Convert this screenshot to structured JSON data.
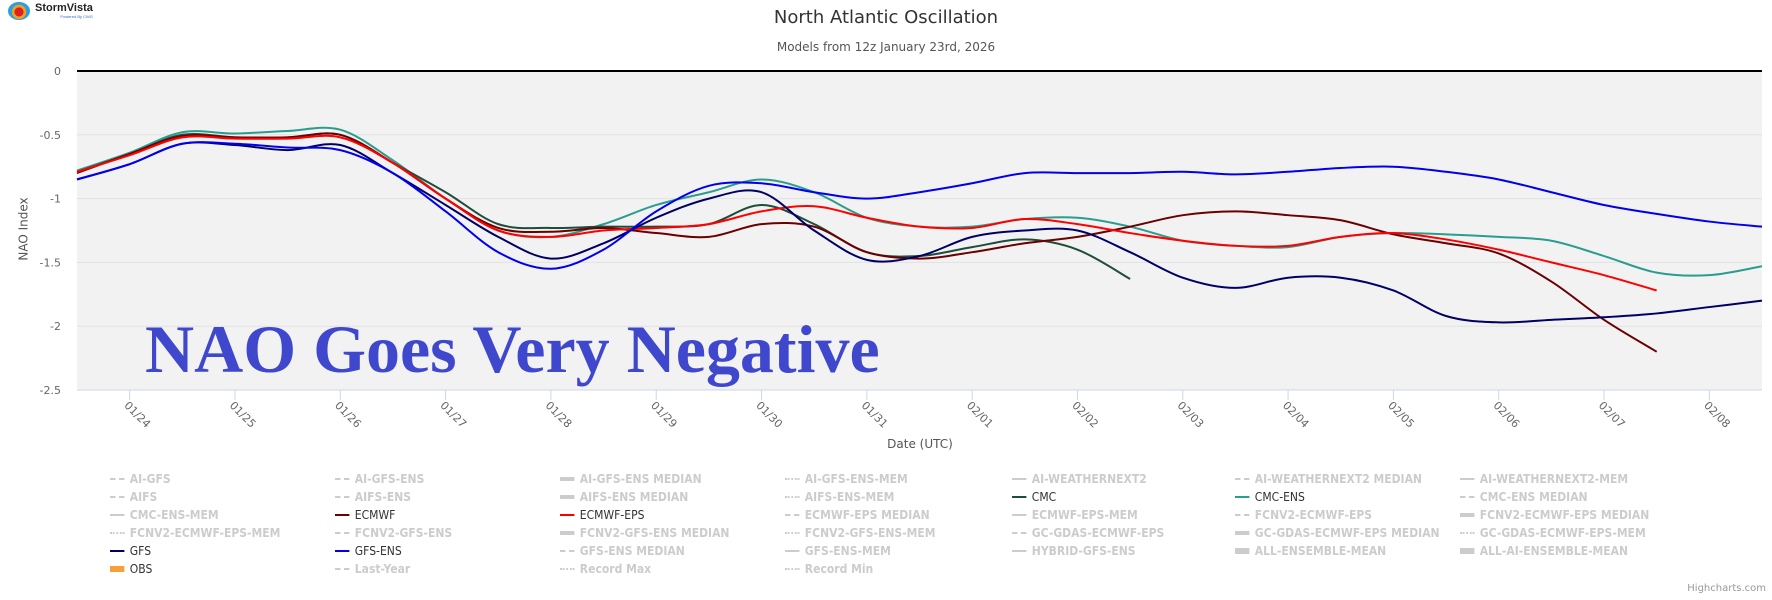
{
  "brand": {
    "name": "StormVista",
    "tagline": "Powered By CWG"
  },
  "credit": "Highcharts.com",
  "overlay_text": "NAO Goes Very Negative",
  "chart_data": {
    "type": "line",
    "title": "North Atlantic Oscillation",
    "subtitle": "Models from 12z January 23rd, 2026",
    "xlabel": "Date (UTC)",
    "ylabel": "NAO Index",
    "ylim": [
      -2.5,
      0
    ],
    "y_ticks": [
      "0",
      "-0.5",
      "-1",
      "-1.5",
      "-2",
      "-2.5"
    ],
    "y_tick_values": [
      0,
      -0.5,
      -1,
      -1.5,
      -2,
      -2.5
    ],
    "x_start": "01/23 12z",
    "x_step_hours": 12,
    "x_ticks": [
      "01/24",
      "01/25",
      "01/26",
      "01/27",
      "01/28",
      "01/29",
      "01/30",
      "01/31",
      "02/01",
      "02/02",
      "02/03",
      "02/04",
      "02/05",
      "02/06",
      "02/07",
      "02/08"
    ],
    "grid": true,
    "series": [
      {
        "name": "CMC-ENS",
        "color": "#2a9d8f",
        "values": [
          -0.78,
          -0.64,
          -0.48,
          -0.49,
          -0.47,
          -0.46,
          -0.7,
          -1.0,
          -1.25,
          -1.3,
          -1.2,
          -1.05,
          -0.95,
          -0.85,
          -0.95,
          -1.15,
          -1.22,
          -1.22,
          -1.16,
          -1.15,
          -1.22,
          -1.33,
          -1.37,
          -1.38,
          -1.3,
          -1.27,
          -1.28,
          -1.3,
          -1.33,
          -1.45,
          -1.58,
          -1.6,
          -1.53
        ]
      },
      {
        "name": "CMC",
        "color": "#1e4d3b",
        "values": [
          -0.79,
          -0.65,
          -0.5,
          -0.52,
          -0.52,
          -0.5,
          -0.72,
          -0.95,
          -1.2,
          -1.23,
          -1.22,
          -1.22,
          -1.2,
          -1.05,
          -1.2,
          -1.42,
          -1.45,
          -1.38,
          -1.32,
          -1.4,
          -1.63
        ]
      },
      {
        "name": "ECMWF",
        "color": "#6b0000",
        "values": [
          -0.8,
          -0.65,
          -0.51,
          -0.52,
          -0.52,
          -0.5,
          -0.72,
          -1.0,
          -1.23,
          -1.26,
          -1.23,
          -1.27,
          -1.3,
          -1.2,
          -1.22,
          -1.42,
          -1.47,
          -1.42,
          -1.35,
          -1.3,
          -1.22,
          -1.13,
          -1.1,
          -1.13,
          -1.17,
          -1.28,
          -1.35,
          -1.43,
          -1.65,
          -1.95,
          -2.2
        ]
      },
      {
        "name": "ECMWF-EPS",
        "color": "#ff0000",
        "values": [
          -0.79,
          -0.66,
          -0.52,
          -0.53,
          -0.53,
          -0.52,
          -0.72,
          -1.0,
          -1.25,
          -1.3,
          -1.25,
          -1.23,
          -1.2,
          -1.1,
          -1.06,
          -1.15,
          -1.22,
          -1.23,
          -1.16,
          -1.2,
          -1.27,
          -1.33,
          -1.37,
          -1.37,
          -1.3,
          -1.27,
          -1.32,
          -1.4,
          -1.5,
          -1.6,
          -1.72
        ]
      },
      {
        "name": "GFS",
        "color": "#000066",
        "values": [
          -0.85,
          -0.73,
          -0.57,
          -0.58,
          -0.62,
          -0.58,
          -0.8,
          -1.05,
          -1.3,
          -1.47,
          -1.35,
          -1.15,
          -1.0,
          -0.95,
          -1.25,
          -1.48,
          -1.45,
          -1.3,
          -1.25,
          -1.25,
          -1.42,
          -1.62,
          -1.7,
          -1.62,
          -1.62,
          -1.72,
          -1.92,
          -1.97,
          -1.95,
          -1.93,
          -1.9,
          -1.85,
          -1.8
        ]
      },
      {
        "name": "GFS-ENS",
        "color": "#0000ee",
        "values": [
          -0.85,
          -0.73,
          -0.57,
          -0.57,
          -0.6,
          -0.62,
          -0.8,
          -1.1,
          -1.42,
          -1.55,
          -1.4,
          -1.1,
          -0.9,
          -0.88,
          -0.95,
          -1.0,
          -0.95,
          -0.88,
          -0.8,
          -0.8,
          -0.8,
          -0.79,
          -0.81,
          -0.79,
          -0.76,
          -0.75,
          -0.79,
          -0.85,
          -0.95,
          -1.05,
          -1.12,
          -1.18,
          -1.22
        ]
      }
    ],
    "legend": {
      "placement": "bottom",
      "items": [
        {
          "name": "AI-GFS",
          "active": false,
          "style": "dashdot"
        },
        {
          "name": "AI-GFS-ENS",
          "active": false,
          "style": "dashdot"
        },
        {
          "name": "AI-GFS-ENS MEDIAN",
          "active": false,
          "style": "thick"
        },
        {
          "name": "AI-GFS-ENS-MEM",
          "active": false,
          "style": "dotted"
        },
        {
          "name": "AI-WEATHERNEXT2",
          "active": false,
          "style": "solid"
        },
        {
          "name": "AI-WEATHERNEXT2 MEDIAN",
          "active": false,
          "style": "dashdot"
        },
        {
          "name": "AI-WEATHERNEXT2-MEM",
          "active": false,
          "style": "solid"
        },
        {
          "name": "AIFS",
          "active": false,
          "style": "dashdot"
        },
        {
          "name": "AIFS-ENS",
          "active": false,
          "style": "dashdot"
        },
        {
          "name": "AIFS-ENS MEDIAN",
          "active": false,
          "style": "thick"
        },
        {
          "name": "AIFS-ENS-MEM",
          "active": false,
          "style": "dotted"
        },
        {
          "name": "CMC",
          "active": true,
          "style": "solid",
          "color": "#1e4d3b"
        },
        {
          "name": "CMC-ENS",
          "active": true,
          "style": "solid",
          "color": "#2a9d8f"
        },
        {
          "name": "CMC-ENS MEDIAN",
          "active": false,
          "style": "dashdot"
        },
        {
          "name": "CMC-ENS-MEM",
          "active": false,
          "style": "solid"
        },
        {
          "name": "ECMWF",
          "active": true,
          "style": "solid",
          "color": "#6b0000"
        },
        {
          "name": "ECMWF-EPS",
          "active": true,
          "style": "solid",
          "color": "#ff0000"
        },
        {
          "name": "ECMWF-EPS MEDIAN",
          "active": false,
          "style": "dashdot"
        },
        {
          "name": "ECMWF-EPS-MEM",
          "active": false,
          "style": "solid"
        },
        {
          "name": "FCNV2-ECMWF-EPS",
          "active": false,
          "style": "dashdot"
        },
        {
          "name": "FCNV2-ECMWF-EPS MEDIAN",
          "active": false,
          "style": "thick"
        },
        {
          "name": "FCNV2-ECMWF-EPS-MEM",
          "active": false,
          "style": "dotted"
        },
        {
          "name": "FCNV2-GFS-ENS",
          "active": false,
          "style": "dashdot"
        },
        {
          "name": "FCNV2-GFS-ENS MEDIAN",
          "active": false,
          "style": "thick"
        },
        {
          "name": "FCNV2-GFS-ENS-MEM",
          "active": false,
          "style": "dotted"
        },
        {
          "name": "GC-GDAS-ECMWF-EPS",
          "active": false,
          "style": "dashdot"
        },
        {
          "name": "GC-GDAS-ECMWF-EPS MEDIAN",
          "active": false,
          "style": "thick"
        },
        {
          "name": "GC-GDAS-ECMWF-EPS-MEM",
          "active": false,
          "style": "dotted"
        },
        {
          "name": "GFS",
          "active": true,
          "style": "solid",
          "color": "#000066"
        },
        {
          "name": "GFS-ENS",
          "active": true,
          "style": "solid",
          "color": "#0000ee"
        },
        {
          "name": "GFS-ENS MEDIAN",
          "active": false,
          "style": "dashdot"
        },
        {
          "name": "GFS-ENS-MEM",
          "active": false,
          "style": "solid"
        },
        {
          "name": "HYBRID-GFS-ENS",
          "active": false,
          "style": "solid"
        },
        {
          "name": "ALL-ENSEMBLE-MEAN",
          "active": false,
          "style": "block"
        },
        {
          "name": "ALL-AI-ENSEMBLE-MEAN",
          "active": false,
          "style": "block"
        },
        {
          "name": "OBS",
          "active": true,
          "style": "block",
          "color": "#f7a035"
        },
        {
          "name": "Last-Year",
          "active": false,
          "style": "dashdot"
        },
        {
          "name": "Record Max",
          "active": false,
          "style": "dotted"
        },
        {
          "name": "Record Min",
          "active": false,
          "style": "dotted"
        }
      ]
    }
  }
}
